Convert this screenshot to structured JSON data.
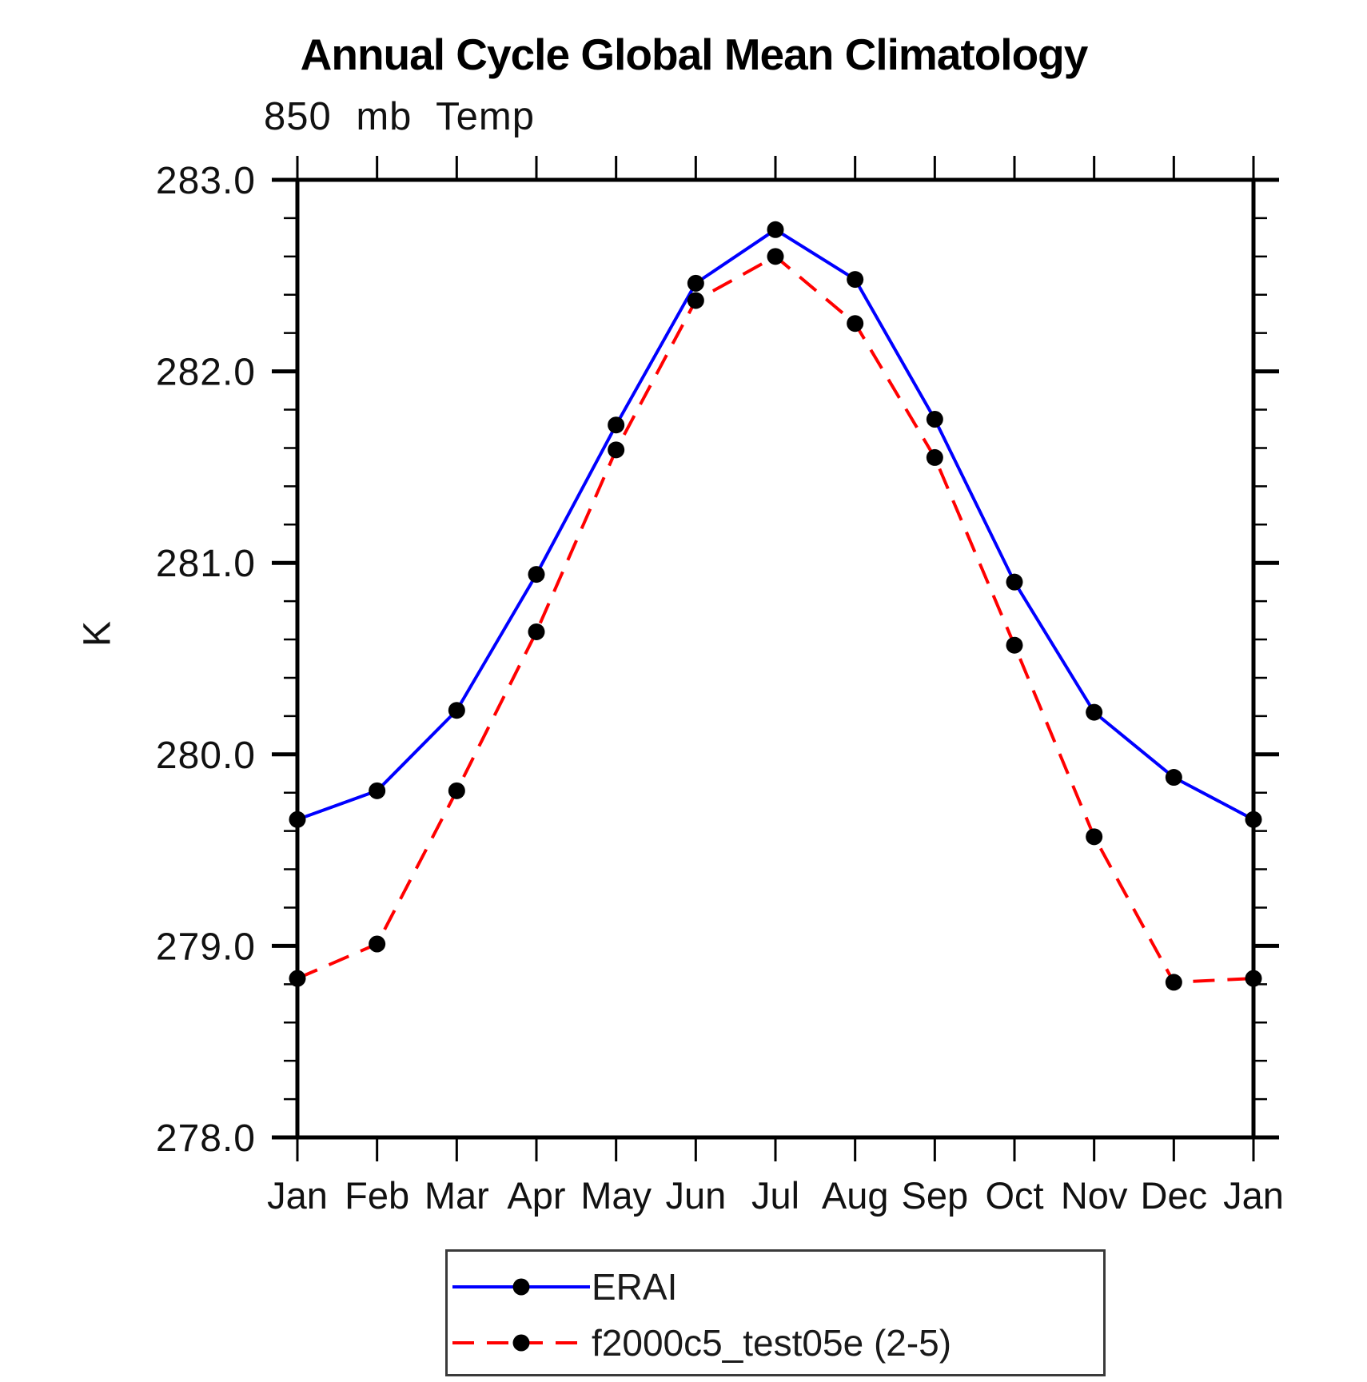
{
  "chart_data": {
    "type": "line",
    "title": "Annual Cycle Global Mean Climatology",
    "subtitle": "850 mb Temp",
    "ylabel": "K",
    "xlabel": "",
    "categories": [
      "Jan",
      "Feb",
      "Mar",
      "Apr",
      "May",
      "Jun",
      "Jul",
      "Aug",
      "Sep",
      "Oct",
      "Nov",
      "Dec",
      "Jan"
    ],
    "ylim": [
      278.0,
      283.0
    ],
    "ytick_major": 1.0,
    "ytick_minor": 0.2,
    "ytick_labels": [
      "278.0",
      "279.0",
      "280.0",
      "281.0",
      "282.0",
      "283.0"
    ],
    "grid": false,
    "legend_position": "bottom-center",
    "axis_color": "#000000",
    "marker_color": "#000000",
    "series": [
      {
        "name": "ERAI",
        "color": "#0000ff",
        "style": "solid",
        "marker": "circle",
        "values": [
          279.66,
          279.81,
          280.23,
          280.94,
          281.72,
          282.46,
          282.74,
          282.48,
          281.75,
          280.9,
          280.22,
          279.88,
          279.66
        ]
      },
      {
        "name": "f2000c5_test05e (2-5)",
        "color": "#ff0000",
        "style": "dashed",
        "marker": "circle",
        "values": [
          278.83,
          279.01,
          279.81,
          280.64,
          281.59,
          282.37,
          282.6,
          282.25,
          281.55,
          280.57,
          279.57,
          278.81,
          278.83
        ]
      }
    ]
  }
}
